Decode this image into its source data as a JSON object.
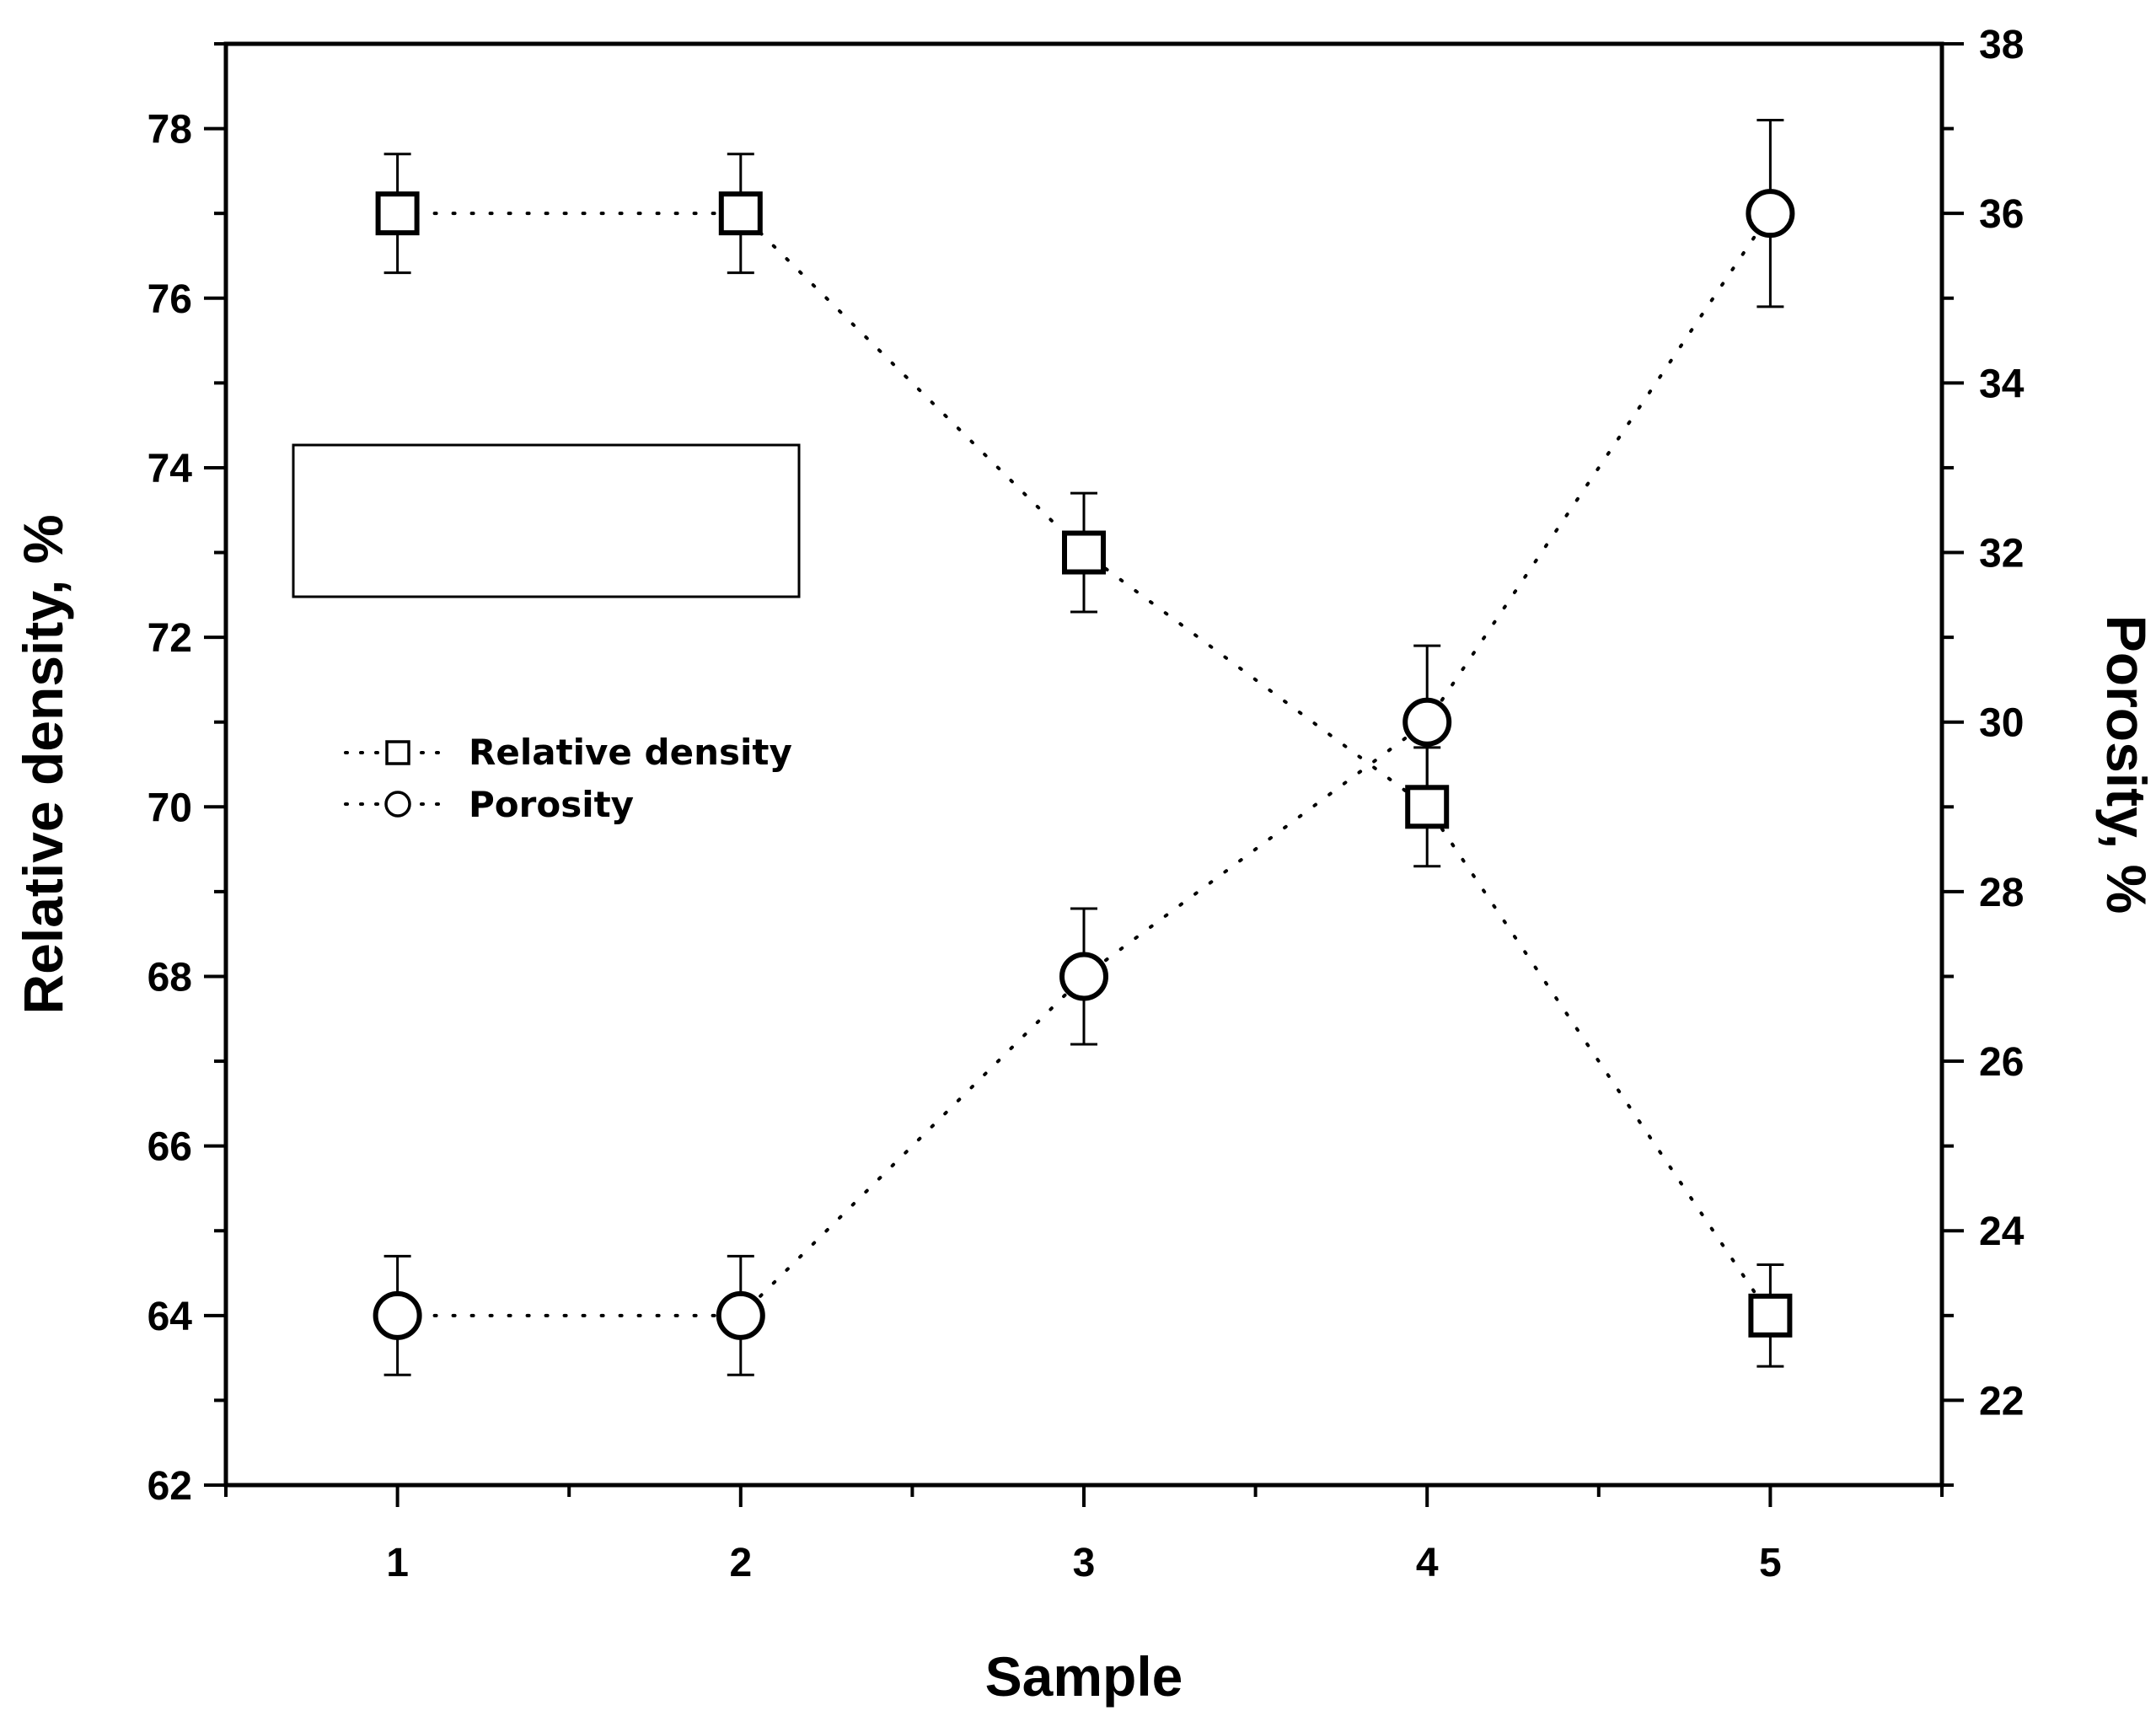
{
  "chart_data": {
    "type": "line",
    "xlabel": "Sample",
    "ylabel_left": "Relative density, %",
    "ylabel_right": "Porosity, %",
    "x": [
      1,
      2,
      3,
      4,
      5
    ],
    "xlim": [
      0.5,
      5.5
    ],
    "xticks": [
      1,
      2,
      3,
      4,
      5
    ],
    "ylim_left": [
      62,
      79
    ],
    "yticks_left": [
      62,
      64,
      66,
      68,
      70,
      72,
      74,
      76,
      78
    ],
    "ylim_right": [
      21,
      38
    ],
    "yticks_right": [
      22,
      24,
      26,
      28,
      30,
      32,
      34,
      36,
      38
    ],
    "grid": false,
    "legend": {
      "placement": "center-left",
      "items": [
        "Relative density",
        "Porosity"
      ]
    },
    "series": [
      {
        "name": "Relative density",
        "axis": "left",
        "marker": "square",
        "line": "dotted",
        "values": [
          77,
          77,
          73,
          70,
          64
        ],
        "error": [
          0.7,
          0.7,
          0.7,
          0.7,
          0.6
        ]
      },
      {
        "name": "Porosity",
        "axis": "right",
        "marker": "circle",
        "line": "dotted",
        "values": [
          23,
          23,
          27,
          30,
          36
        ],
        "error": [
          0.7,
          0.7,
          0.8,
          0.9,
          1.1
        ]
      }
    ]
  }
}
